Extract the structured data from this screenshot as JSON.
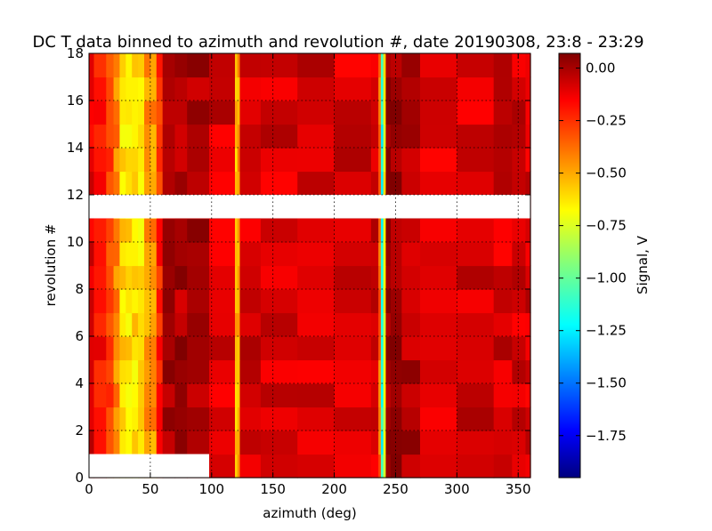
{
  "chart_data": {
    "type": "heatmap",
    "title": "DC T data binned to azimuth and revolution #, date 20190308, 23:8 - 23:29",
    "xlabel": "azimuth (deg)",
    "ylabel": "revolution #",
    "xlim": [
      0,
      360
    ],
    "ylim": [
      0,
      18
    ],
    "xticks": [
      "0",
      "50",
      "100",
      "150",
      "200",
      "250",
      "300",
      "350"
    ],
    "yticks": [
      "0",
      "2",
      "4",
      "6",
      "8",
      "10",
      "12",
      "14",
      "16",
      "18"
    ],
    "grid": true,
    "colorbar": {
      "label": "Signal, V",
      "range": [
        -1.95,
        0.07
      ],
      "ticks": [
        "0.00",
        "−0.25",
        "−0.50",
        "−0.75",
        "−1.00",
        "−1.25",
        "−1.50",
        "−1.75"
      ],
      "colormap": "jet"
    },
    "missing_regions": [
      {
        "rev": [
          11,
          12
        ],
        "azimuth": [
          0,
          360
        ]
      },
      {
        "rev": [
          0,
          1
        ],
        "azimuth": [
          0,
          98
        ]
      }
    ],
    "features": [
      {
        "name": "strong dip",
        "azimuth": [
          20,
          55
        ],
        "value": -0.6
      },
      {
        "name": "narrow line",
        "azimuth": [
          120,
          122
        ],
        "value": -0.55
      },
      {
        "name": "deepest line",
        "azimuth": [
          237,
          241
        ],
        "value": -1.2
      },
      {
        "name": "background",
        "value": -0.1
      }
    ]
  }
}
